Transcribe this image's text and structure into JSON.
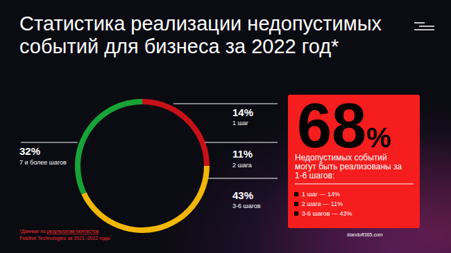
{
  "chart_data": {
    "type": "pie",
    "title": "Статистика реализации недопустимых событий для бизнеса за 2022 год*",
    "categories": [
      "1 шаг",
      "2 шага",
      "3-6 шагов",
      "7 и более шагов"
    ],
    "values": [
      14,
      11,
      43,
      32
    ],
    "value_labels": [
      "14%",
      "11%",
      "43%",
      "32%"
    ],
    "colors": [
      "#c81018",
      "#c81018",
      "#f2b705",
      "#17a336"
    ],
    "data_labels": true,
    "annotations": {
      "highlight": {
        "value": 68,
        "unit": "%",
        "text": "Недопустимых событий могут быть реализованы за 1-6 шагов:",
        "items": [
          "1 шаг — 14%",
          "2 шага — 11%",
          "3-6 шагов — 43%"
        ]
      },
      "footnote": {
        "prefix": "*Данные по ",
        "link": "результатам пентестов",
        "suffix": "Positive Technologies за 2021–2022 годы"
      },
      "source": "standoff365.com"
    }
  }
}
